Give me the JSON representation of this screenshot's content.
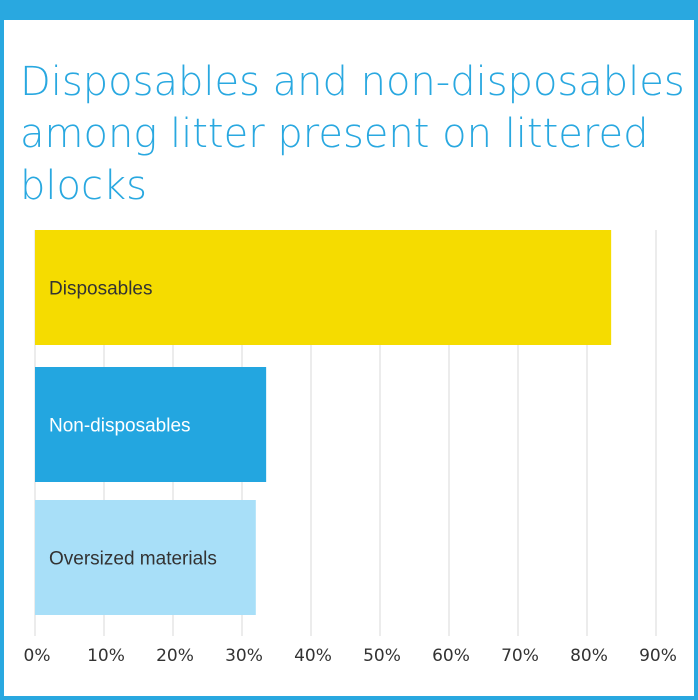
{
  "chart_data": {
    "type": "bar",
    "orientation": "horizontal",
    "title": "Disposables and non-disposables among litter present on littered blocks",
    "categories": [
      "Disposables",
      "Non-disposables",
      "Oversized materials"
    ],
    "values": [
      83.5,
      33.5,
      32
    ],
    "unit": "%",
    "xlim": [
      0,
      90
    ],
    "ticks": [
      "0%",
      "10%",
      "20%",
      "30%",
      "40%",
      "50%",
      "60%",
      "70%",
      "80%",
      "90%"
    ],
    "grid": true,
    "colors": [
      "#f5dc00",
      "#23a6e0",
      "#a8dff8"
    ],
    "label_colors": [
      "#333333",
      "#ffffff",
      "#333333"
    ]
  }
}
